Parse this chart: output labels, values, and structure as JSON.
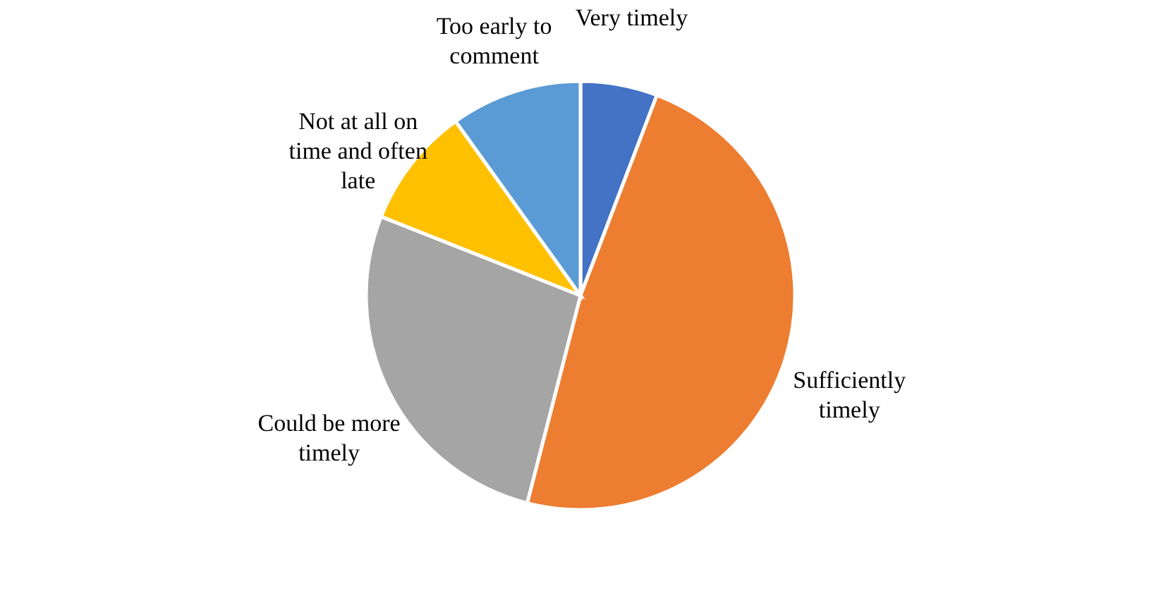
{
  "chart_data": {
    "type": "pie",
    "categories": [
      "Very timely",
      "Sufficiently timely",
      "Could be more timely",
      "Not at all on time and often late",
      "Too early to comment"
    ],
    "values": [
      5.8,
      48.2,
      27.0,
      9.1,
      9.9
    ],
    "colors": [
      "#4472c4",
      "#ed7d31",
      "#a5a5a5",
      "#ffc000",
      "#5b9bd5"
    ]
  }
}
